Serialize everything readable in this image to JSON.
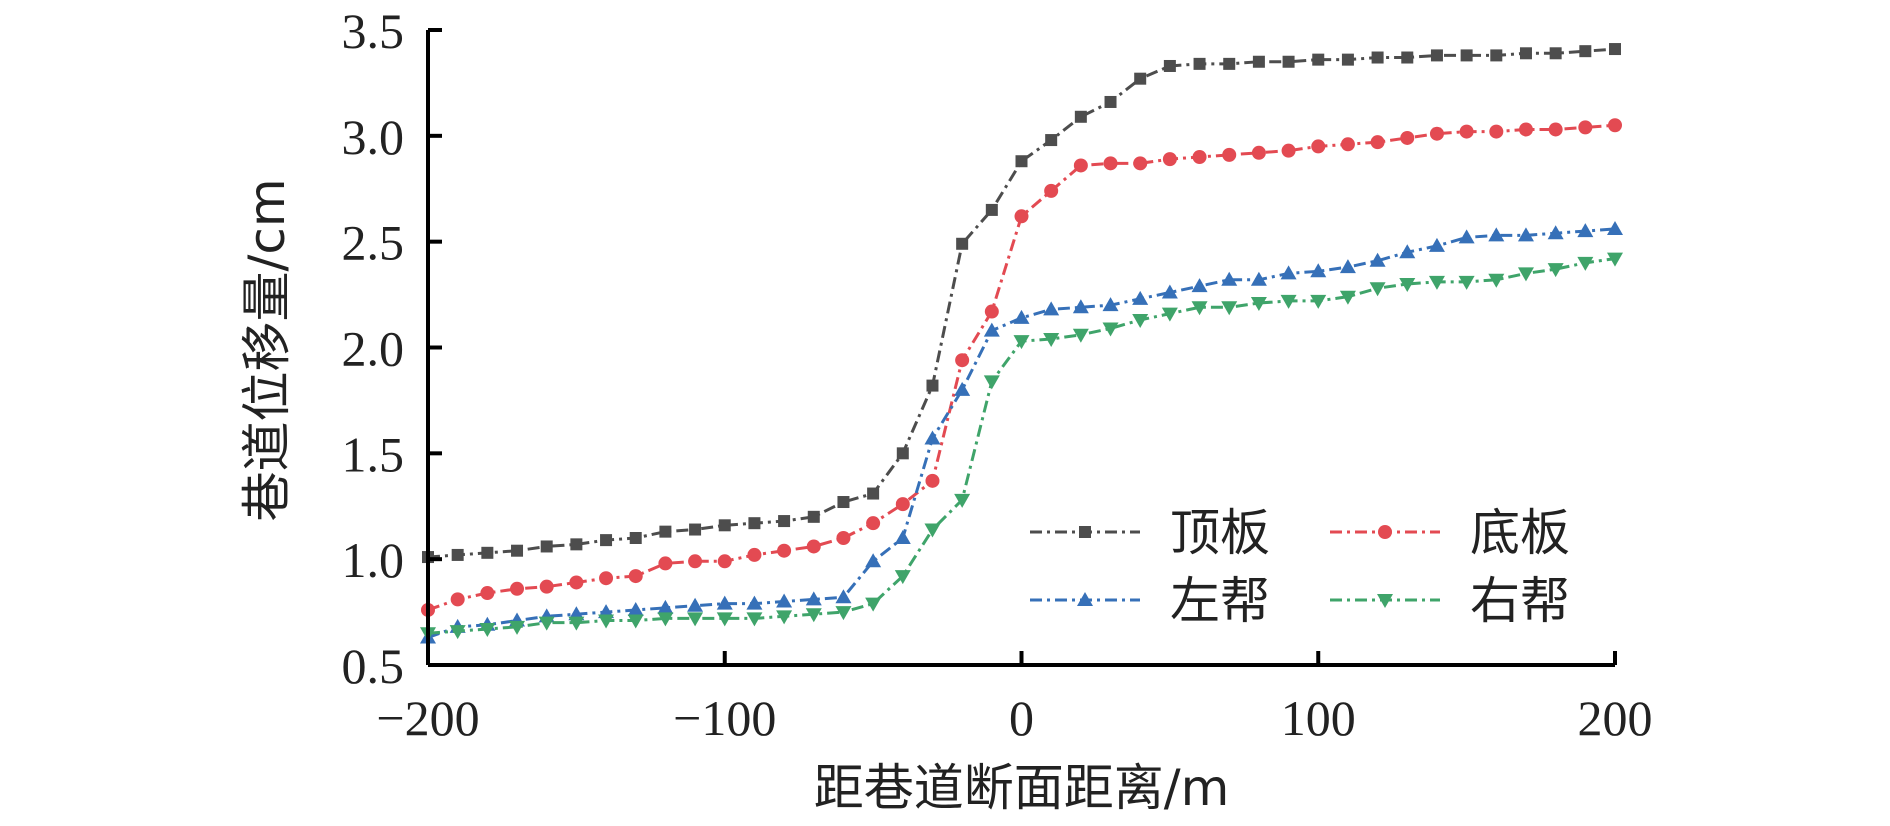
{
  "chart_data": {
    "type": "line",
    "title": "",
    "xlabel": "距巷道断面距离/m",
    "ylabel": "巷道位移量/cm",
    "xlim": [
      -200,
      200
    ],
    "ylim": [
      0.5,
      3.5
    ],
    "xticks": [
      -200,
      -100,
      0,
      100,
      200
    ],
    "xtick_labels": [
      "−200",
      "−100",
      "0",
      "100",
      "200"
    ],
    "yticks": [
      0.5,
      1.0,
      1.5,
      2.0,
      2.5,
      3.0,
      3.5
    ],
    "ytick_labels": [
      "0.5",
      "1.0",
      "1.5",
      "2.0",
      "2.5",
      "3.0",
      "3.5"
    ],
    "grid": false,
    "legend_position": "bottom-right",
    "x": [
      -200,
      -190,
      -180,
      -170,
      -160,
      -150,
      -140,
      -130,
      -120,
      -110,
      -100,
      -90,
      -80,
      -70,
      -60,
      -50,
      -40,
      -30,
      -20,
      -10,
      0,
      10,
      20,
      30,
      40,
      50,
      60,
      70,
      80,
      90,
      100,
      110,
      120,
      130,
      140,
      150,
      160,
      170,
      180,
      190,
      200
    ],
    "series": [
      {
        "name": "顶板",
        "color": "#4d4d4d",
        "marker": "square",
        "values": [
          1.01,
          1.02,
          1.03,
          1.04,
          1.06,
          1.07,
          1.09,
          1.1,
          1.13,
          1.14,
          1.16,
          1.17,
          1.18,
          1.2,
          1.27,
          1.31,
          1.5,
          1.82,
          2.49,
          2.65,
          2.88,
          2.98,
          3.09,
          3.16,
          3.27,
          3.33,
          3.34,
          3.34,
          3.35,
          3.35,
          3.36,
          3.36,
          3.37,
          3.37,
          3.38,
          3.38,
          3.38,
          3.39,
          3.39,
          3.4,
          3.41
        ]
      },
      {
        "name": "底板",
        "color": "#e34a52",
        "marker": "circle",
        "values": [
          0.76,
          0.81,
          0.84,
          0.86,
          0.87,
          0.89,
          0.91,
          0.92,
          0.98,
          0.99,
          0.99,
          1.02,
          1.04,
          1.06,
          1.1,
          1.17,
          1.26,
          1.37,
          1.94,
          2.17,
          2.62,
          2.74,
          2.86,
          2.87,
          2.87,
          2.89,
          2.9,
          2.91,
          2.92,
          2.93,
          2.95,
          2.96,
          2.97,
          2.99,
          3.01,
          3.02,
          3.02,
          3.03,
          3.03,
          3.04,
          3.05
        ]
      },
      {
        "name": "左帮",
        "color": "#3670b8",
        "marker": "triangle-up",
        "values": [
          0.63,
          0.68,
          0.69,
          0.71,
          0.73,
          0.74,
          0.75,
          0.76,
          0.77,
          0.78,
          0.79,
          0.79,
          0.8,
          0.81,
          0.82,
          0.99,
          1.1,
          1.57,
          1.8,
          2.08,
          2.14,
          2.18,
          2.19,
          2.2,
          2.23,
          2.26,
          2.29,
          2.32,
          2.32,
          2.35,
          2.36,
          2.38,
          2.41,
          2.45,
          2.48,
          2.52,
          2.53,
          2.53,
          2.54,
          2.55,
          2.56
        ]
      },
      {
        "name": "右帮",
        "color": "#3fa46a",
        "marker": "triangle-down",
        "values": [
          0.65,
          0.66,
          0.67,
          0.68,
          0.7,
          0.7,
          0.71,
          0.71,
          0.72,
          0.72,
          0.72,
          0.72,
          0.73,
          0.74,
          0.75,
          0.79,
          0.92,
          1.14,
          1.28,
          1.84,
          2.03,
          2.04,
          2.06,
          2.09,
          2.13,
          2.16,
          2.19,
          2.19,
          2.21,
          2.22,
          2.22,
          2.24,
          2.28,
          2.3,
          2.31,
          2.31,
          2.32,
          2.35,
          2.37,
          2.4,
          2.42
        ]
      }
    ]
  }
}
